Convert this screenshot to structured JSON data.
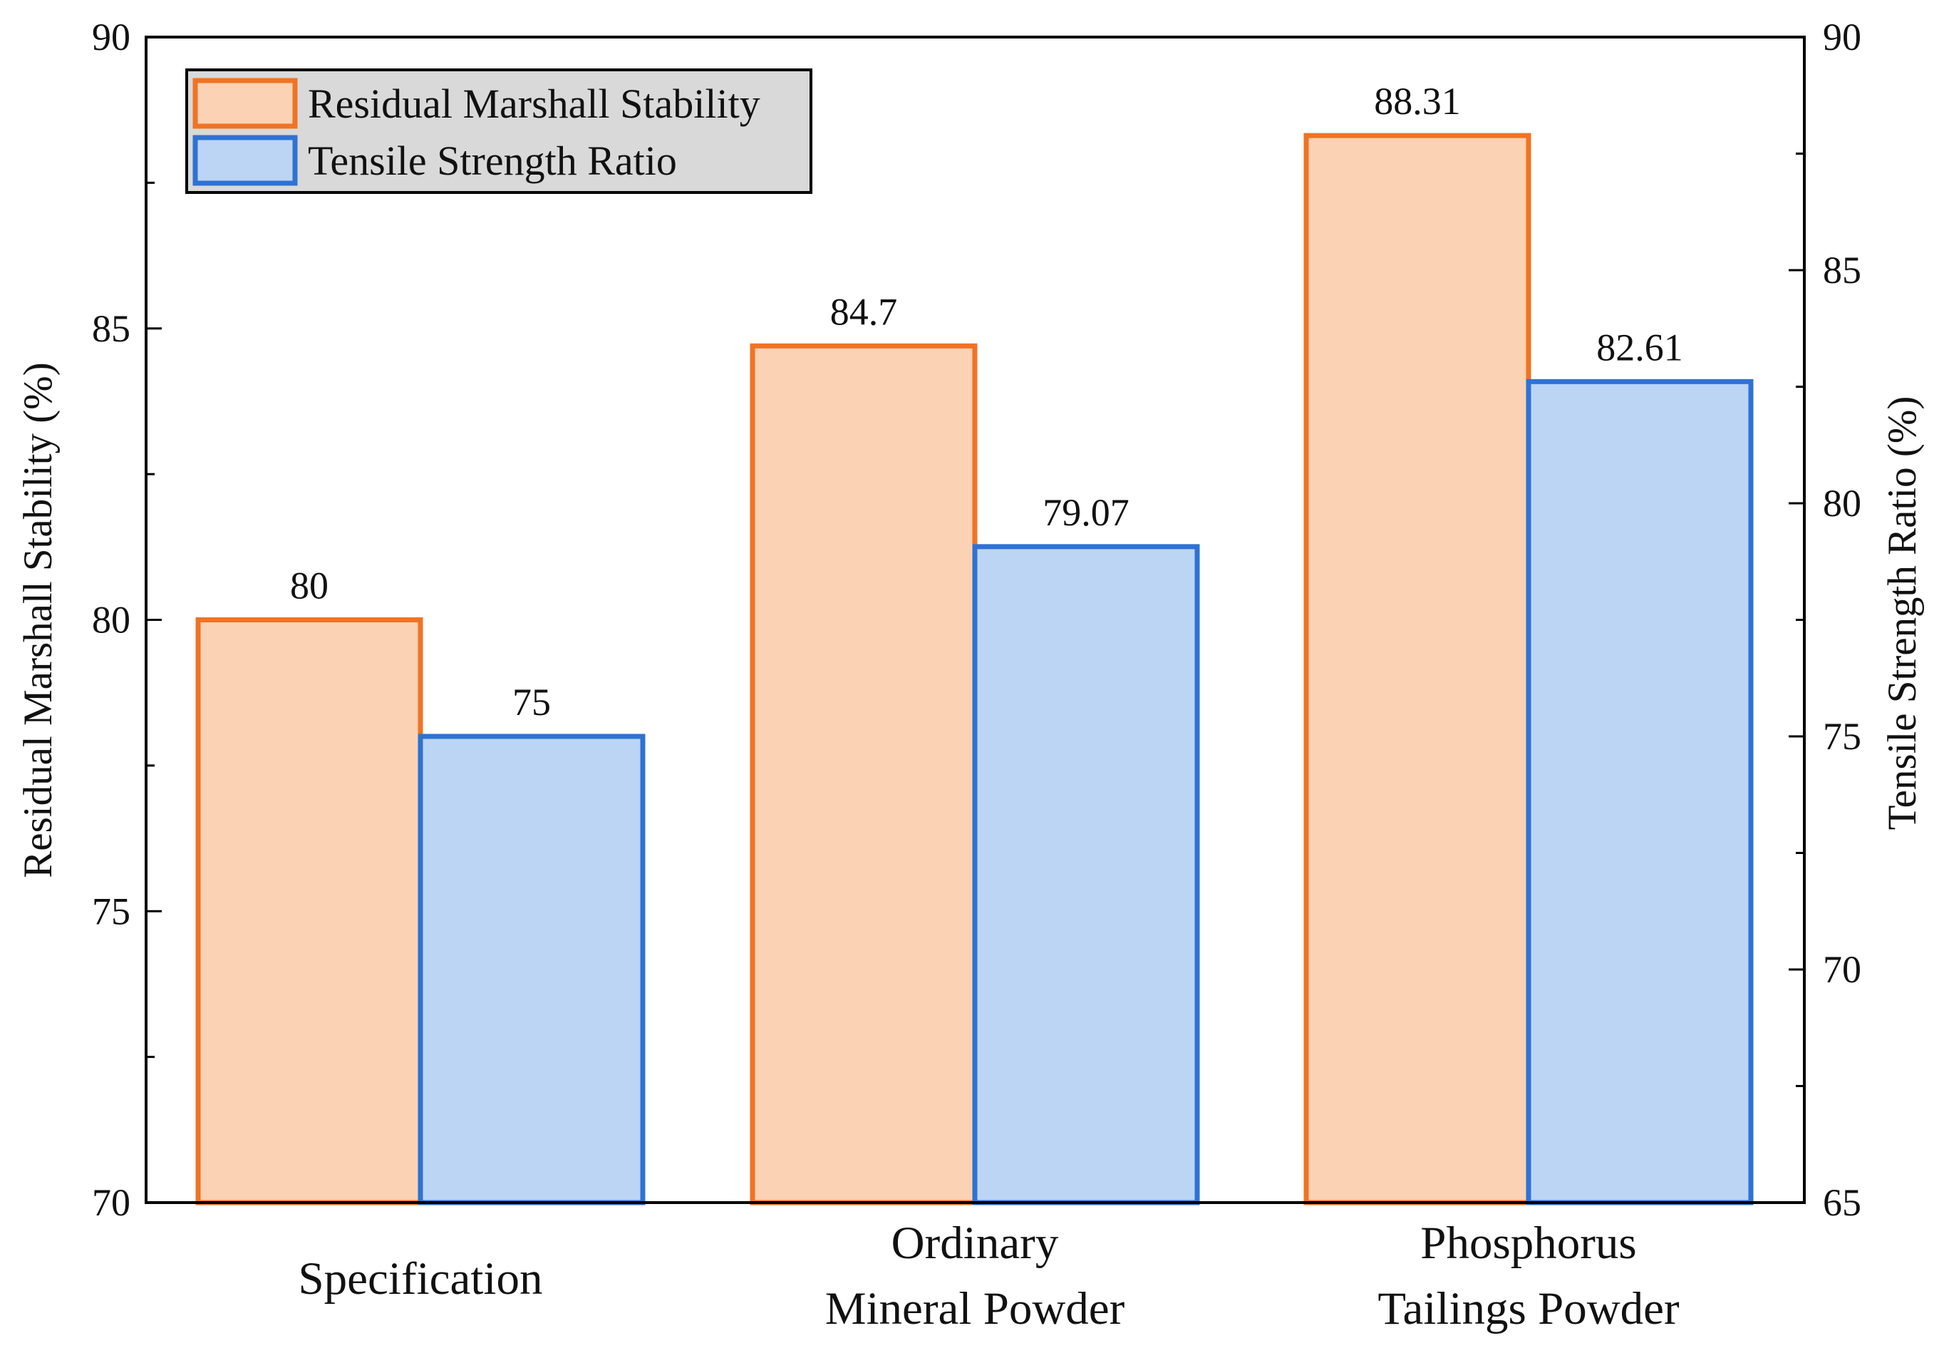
{
  "chart_data": {
    "type": "bar",
    "categories": [
      [
        "Specification"
      ],
      [
        "Ordinary",
        "Mineral Powder"
      ],
      [
        "Phosphorus",
        "Tailings Powder"
      ]
    ],
    "series": [
      {
        "name": "Residual Marshall Stability",
        "axis": "left",
        "values": [
          80,
          84.7,
          88.31
        ],
        "labels": [
          "80",
          "84.7",
          "88.31"
        ],
        "fill": "#fcd2b4",
        "stroke": "#f07324"
      },
      {
        "name": "Tensile Strength Ratio",
        "axis": "right",
        "values": [
          75,
          79.07,
          82.61
        ],
        "labels": [
          "75",
          "79.07",
          "82.61"
        ],
        "fill": "#bcd5f5",
        "stroke": "#2f72d2"
      }
    ],
    "y_left": {
      "label": "Residual Marshall Stability (%)",
      "range": [
        70,
        90
      ],
      "ticks": [
        70,
        75,
        80,
        85,
        90
      ],
      "tick_labels": [
        "70",
        "75",
        "80",
        "85",
        "90"
      ],
      "minor_step": 2.5
    },
    "y_right": {
      "label": "Tensile Strength Ratio (%)",
      "range": [
        65,
        90
      ],
      "ticks": [
        65,
        70,
        75,
        80,
        85,
        90
      ],
      "tick_labels": [
        "65",
        "70",
        "75",
        "80",
        "85",
        "90"
      ],
      "minor_step": 2.5
    },
    "legend": {
      "position": "top-left",
      "background": "#d9d9d9",
      "entries": [
        "Residual Marshall Stability",
        "Tensile Strength Ratio"
      ]
    },
    "grid": false
  }
}
